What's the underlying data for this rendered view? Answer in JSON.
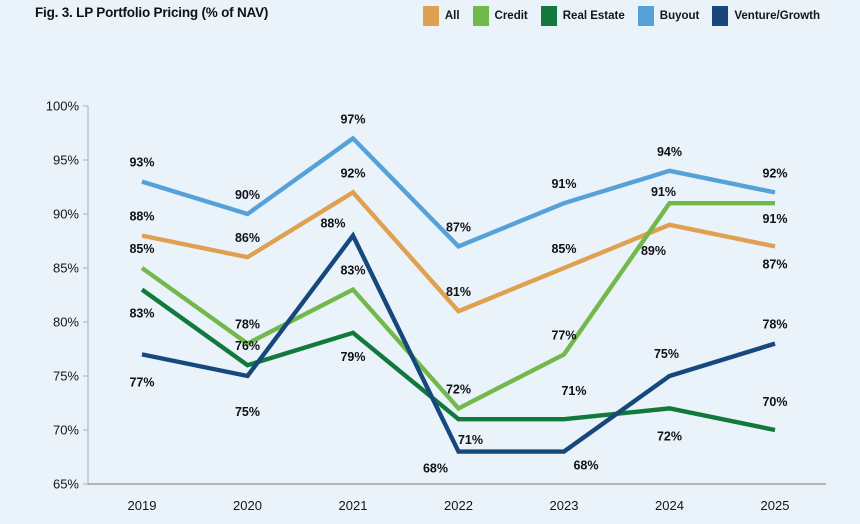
{
  "title": "Fig. 3. LP Portfolio Pricing (% of NAV)",
  "chart_data": {
    "type": "line",
    "title": "Fig. 3. LP Portfolio Pricing (% of NAV)",
    "x": [
      "2019",
      "2020",
      "2021",
      "2022",
      "2023",
      "2024",
      "2025"
    ],
    "series": [
      {
        "name": "All",
        "color": "#DFA050",
        "values": [
          88,
          86,
          92,
          81,
          85,
          89,
          87
        ]
      },
      {
        "name": "Credit",
        "color": "#73B84B",
        "values": [
          85,
          78,
          83,
          72,
          77,
          91,
          91
        ]
      },
      {
        "name": "Real Estate",
        "color": "#11793B",
        "values": [
          83,
          76,
          79,
          71,
          71,
          72,
          70
        ]
      },
      {
        "name": "Buyout",
        "color": "#57A1D9",
        "values": [
          93,
          90,
          97,
          87,
          91,
          94,
          92
        ]
      },
      {
        "name": "Venture/Growth",
        "color": "#16487E",
        "values": [
          77,
          75,
          88,
          68,
          68,
          75,
          78
        ]
      }
    ],
    "ylim": [
      65,
      100
    ],
    "yticks": [
      "100%",
      "95%",
      "90%",
      "85%",
      "80%",
      "75%",
      "70%",
      "65%"
    ],
    "value_suffix": "%",
    "data_labels": true,
    "grid": false,
    "legend_position": "top-right"
  },
  "colors": {
    "background": "#EAF2FA",
    "y_axis": "#B2BAC2",
    "x_axis": "#9AA1A7",
    "text": "#15161A"
  }
}
